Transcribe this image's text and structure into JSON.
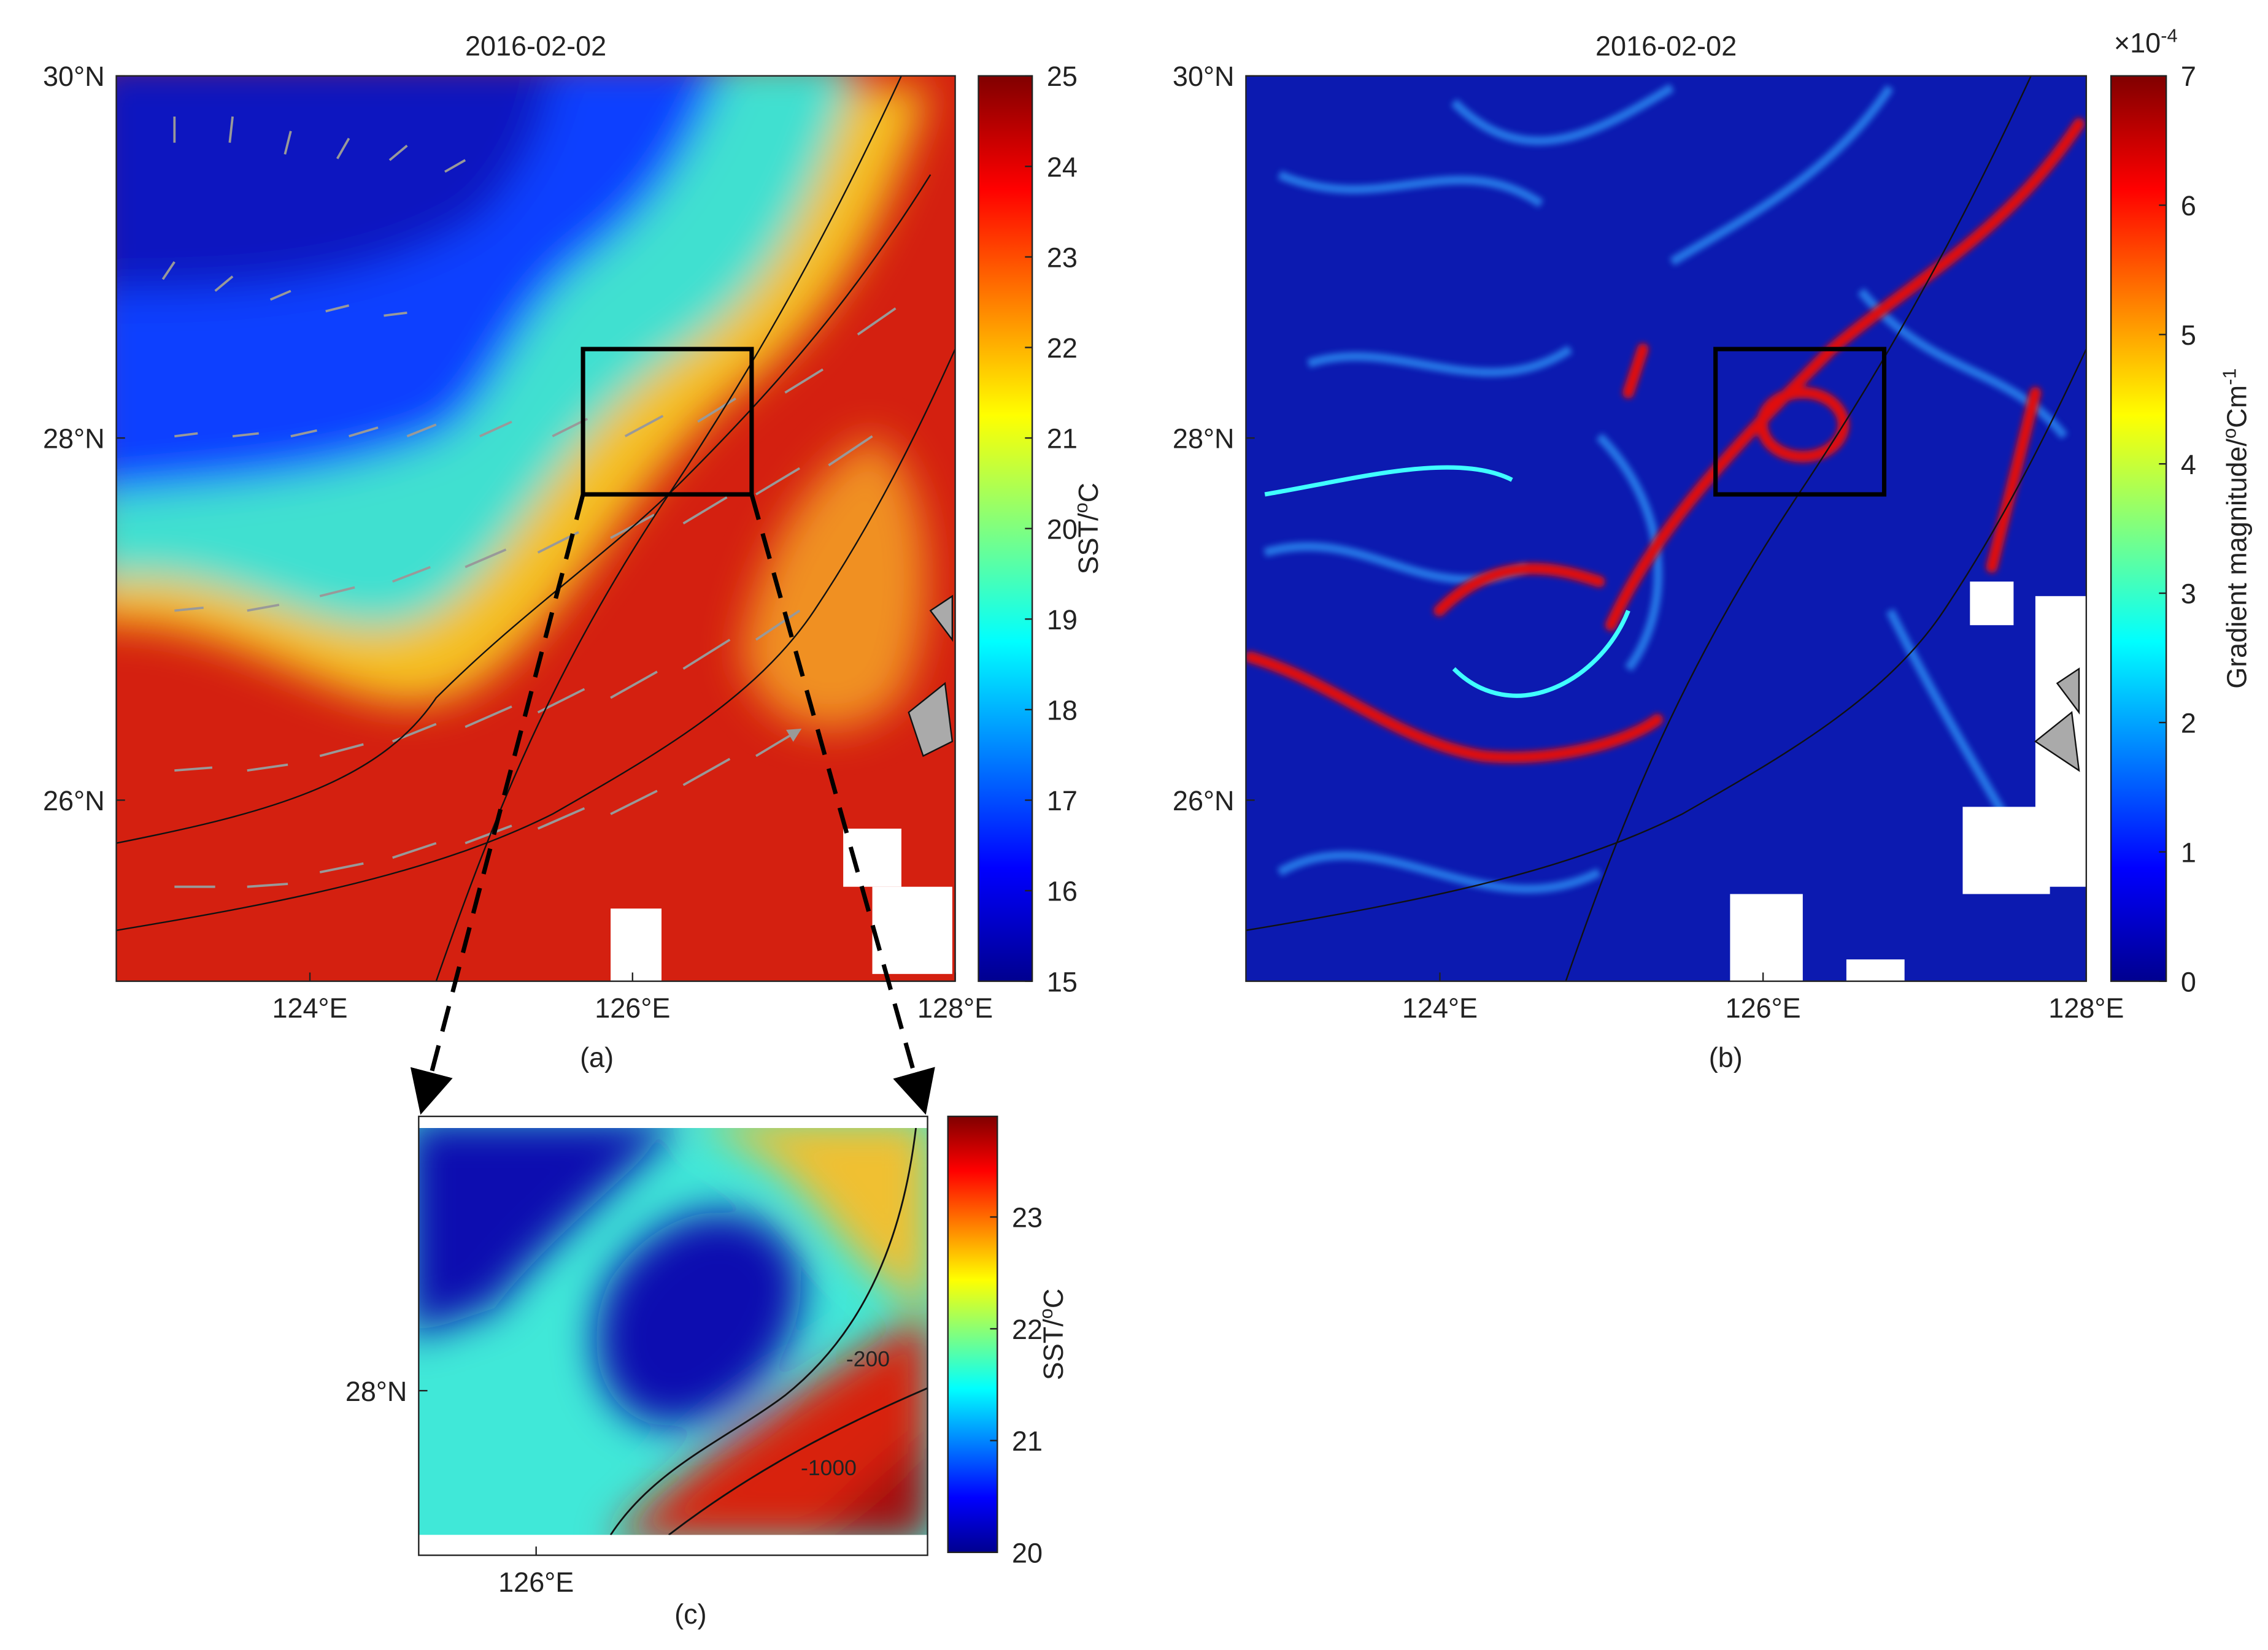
{
  "figure": {
    "panels": [
      {
        "title": "2016-02-02",
        "label": "(a)",
        "xlim": [
          122.8,
          128
        ],
        "ylim": [
          25,
          30
        ],
        "xticks": [
          {
            "value": 124,
            "label": "124°E"
          },
          {
            "value": 126,
            "label": "126°E"
          },
          {
            "value": 128,
            "label": "128°E"
          }
        ],
        "yticks": [
          {
            "value": 30,
            "label": "30°N"
          },
          {
            "value": 28,
            "label": "28°N"
          },
          {
            "value": 26,
            "label": "26°N"
          }
        ],
        "colorbar": {
          "lim": [
            15,
            25
          ],
          "ticks": [
            15,
            16,
            17,
            18,
            19,
            20,
            21,
            22,
            23,
            24,
            25
          ],
          "label": [
            "SST/",
            "o",
            "C"
          ]
        }
      },
      {
        "title": "2016-02-02",
        "label": "(b)",
        "xlim": [
          122.8,
          128
        ],
        "ylim": [
          25,
          30
        ],
        "xticks": [
          {
            "value": 124,
            "label": "124°E"
          },
          {
            "value": 126,
            "label": "126°E"
          },
          {
            "value": 128,
            "label": "128°E"
          }
        ],
        "yticks": [
          {
            "value": 30,
            "label": "30°N"
          },
          {
            "value": 28,
            "label": "28°N"
          },
          {
            "value": 26,
            "label": "26°N"
          }
        ],
        "colorbar": {
          "lim": [
            0,
            7
          ],
          "ticks": [
            0,
            1,
            2,
            3,
            4,
            5,
            6,
            7
          ],
          "exponent": [
            "×10",
            "-4"
          ],
          "label": [
            "Gradient magnitude/",
            "o",
            "Cm",
            "-1"
          ]
        }
      },
      {
        "label": "(c)",
        "xlim": [
          125.76,
          126.8
        ],
        "ylim": [
          27.7,
          28.5
        ],
        "xticks": [
          {
            "value": 126,
            "label": "126°E"
          }
        ],
        "yticks": [
          {
            "value": 28,
            "label": "28°N"
          }
        ],
        "colorbar": {
          "lim": [
            20,
            23.9
          ],
          "ticks": [
            20,
            21,
            22,
            23
          ],
          "label": [
            "SST/",
            "o",
            "C"
          ]
        },
        "contour_labels": [
          "-200",
          "-1000"
        ]
      }
    ]
  }
}
